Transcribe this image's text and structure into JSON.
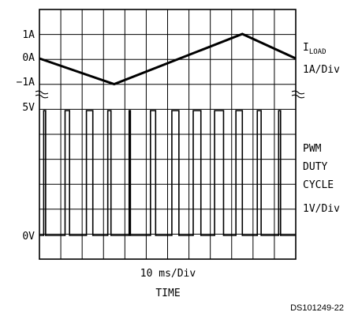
{
  "chart_data": [
    {
      "type": "line",
      "series": [
        {
          "name": "ILOAD",
          "x": [
            0,
            3.5,
            9.5,
            12
          ],
          "values": [
            0,
            -1.05,
            1,
            0
          ]
        }
      ],
      "y_ticks": [
        "1A",
        "0A",
        "−1A"
      ],
      "right_label_main": "I",
      "right_label_sub": "LOAD",
      "right_scale": "1A/Div",
      "xlim": [
        0,
        12
      ],
      "ylim": [
        -1.5,
        1.5
      ]
    },
    {
      "type": "line",
      "series": [
        {
          "name": "PWM",
          "pulse_starts": [
            0.2,
            1.2,
            2.2,
            3.2,
            4.2,
            5.2,
            6.2,
            7.2,
            8.2,
            9.2,
            10.2,
            11.2
          ],
          "pulse_widths": [
            0.15,
            0.35,
            0.5,
            0.25,
            0.1,
            0.4,
            0.55,
            0.6,
            0.7,
            0.5,
            0.3,
            0.15
          ],
          "pulse_period": 0.6
        }
      ],
      "y_ticks": [
        "5V",
        "0V"
      ],
      "right_label_lines": [
        "PWM",
        "DUTY",
        "CYCLE"
      ],
      "right_scale": "1V/Div",
      "xlim": [
        0,
        12
      ],
      "ylim": [
        0,
        5
      ]
    }
  ],
  "x_scale": "10 ms/Div",
  "x_title": "TIME",
  "part_number": "DS101249-22"
}
